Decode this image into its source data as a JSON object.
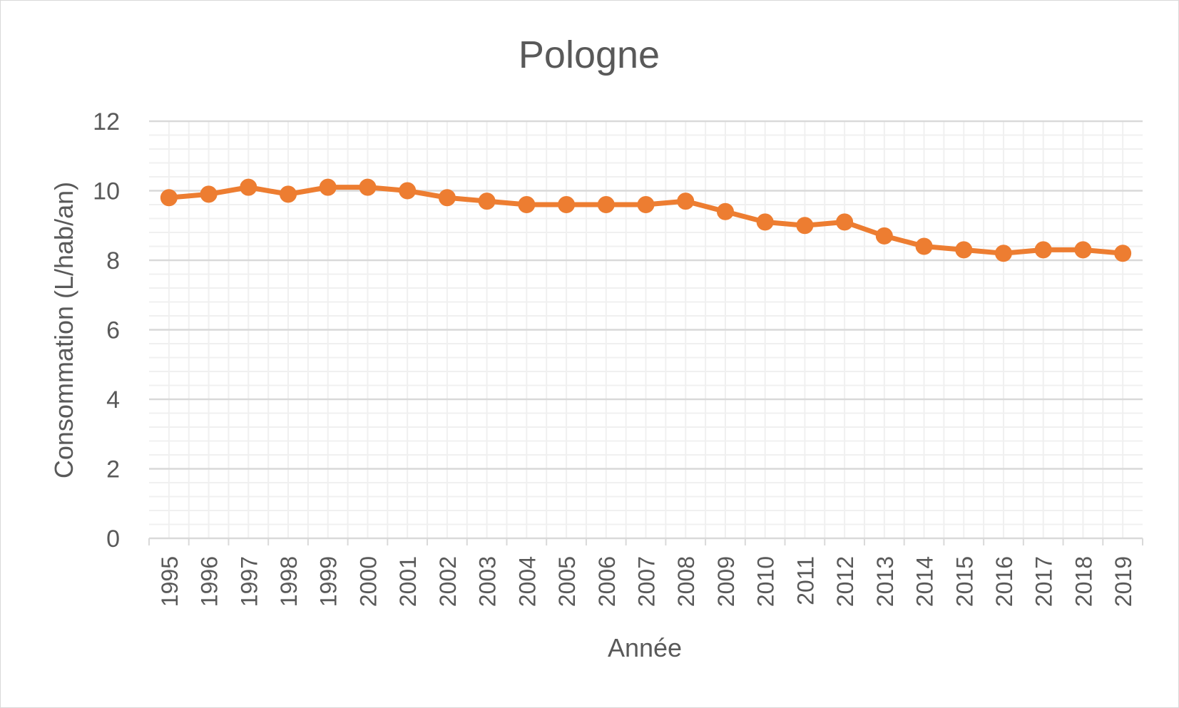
{
  "chart_data": {
    "type": "line",
    "title": "Pologne",
    "xlabel": "Année",
    "ylabel": "Consommation (L/hab/an)",
    "ylim": [
      0,
      12
    ],
    "yticks": [
      0,
      2,
      4,
      6,
      8,
      10,
      12
    ],
    "minor_grid_step": 0.4,
    "grid": true,
    "legend": "none",
    "colors": {
      "line": "#ED7D31",
      "major_grid": "#d9d9d9",
      "minor_grid": "#f0f0f0",
      "text": "#595959"
    },
    "categories": [
      "1995",
      "1996",
      "1997",
      "1998",
      "1999",
      "2000",
      "2001",
      "2002",
      "2003",
      "2004",
      "2005",
      "2006",
      "2007",
      "2008",
      "2009",
      "2010",
      "2011",
      "2012",
      "2013",
      "2014",
      "2015",
      "2016",
      "2017",
      "2018",
      "2019"
    ],
    "series": [
      {
        "values": [
          9.8,
          9.9,
          10.1,
          9.9,
          10.1,
          10.1,
          10.0,
          9.8,
          9.7,
          9.6,
          9.6,
          9.6,
          9.6,
          9.7,
          9.4,
          9.1,
          9.0,
          9.1,
          8.7,
          8.4,
          8.3,
          8.2,
          8.3,
          8.3,
          8.2
        ]
      }
    ]
  }
}
